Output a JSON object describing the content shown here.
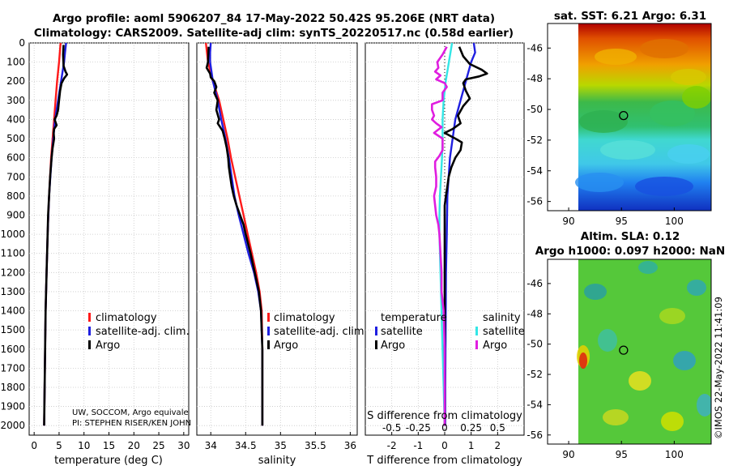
{
  "header": {
    "line1": "Argo profile: aoml 5906207_84 17-May-2022 50.42S 95.206E (NRT data)",
    "line2": "Climatology: CARS2009. Satellite-adj clim: synTS_20220517.nc (0.58d earlier)"
  },
  "colors": {
    "climatology": "#ff1a1a",
    "satellite_adj": "#1f1fe0",
    "argo": "#000000",
    "sal_satellite": "#33e6e6",
    "sal_argo": "#e01ee0"
  },
  "credits": {
    "line1": "UW, SOCCOM, Argo equivale",
    "line2": "PI: STEPHEN RISER/KEN JOHN",
    "stamp": "©IMOS 22-May-2022 11:41:09"
  },
  "chart_data": [
    {
      "type": "line",
      "name": "temperature",
      "xlabel": "temperature (deg C)",
      "ylabel": "",
      "xlim": [
        -1,
        31
      ],
      "ylim": [
        2050,
        0
      ],
      "xticks": [
        "0",
        "5",
        "10",
        "15",
        "20",
        "25",
        "30"
      ],
      "yticks": [
        "0",
        "100",
        "200",
        "300",
        "400",
        "500",
        "600",
        "700",
        "800",
        "900",
        "1000",
        "1100",
        "1200",
        "1300",
        "1400",
        "1500",
        "1600",
        "1700",
        "1800",
        "1900",
        "2000"
      ],
      "legend": [
        "climatology",
        "satellite-adj. clim.",
        "Argo"
      ],
      "series": [
        {
          "name": "climatology",
          "depth": [
            0,
            100,
            200,
            300,
            400,
            600,
            800,
            1000,
            1200,
            1400,
            1600,
            1800,
            2000
          ],
          "values": [
            5.3,
            5.0,
            4.6,
            4.3,
            4.0,
            3.4,
            3.0,
            2.7,
            2.5,
            2.3,
            2.2,
            2.1,
            2.0
          ]
        },
        {
          "name": "satellite-adj. clim.",
          "depth": [
            0,
            50,
            100,
            200,
            300,
            400,
            600,
            800,
            1000,
            1200,
            1400,
            1600,
            1800,
            2000
          ],
          "values": [
            6.4,
            6.2,
            6.0,
            5.4,
            4.8,
            4.2,
            3.5,
            3.0,
            2.7,
            2.5,
            2.3,
            2.2,
            2.1,
            2.0
          ]
        },
        {
          "name": "Argo",
          "depth": [
            10,
            60,
            120,
            150,
            165,
            185,
            210,
            250,
            300,
            350,
            380,
            400,
            430,
            450,
            470,
            500,
            550,
            600,
            700,
            800,
            900,
            1000,
            1200,
            1400,
            1600,
            1800,
            2000
          ],
          "values": [
            5.9,
            5.8,
            5.9,
            6.3,
            6.6,
            6.0,
            5.5,
            5.2,
            5.0,
            4.8,
            4.5,
            4.1,
            4.5,
            4.0,
            3.9,
            4.0,
            3.7,
            3.5,
            3.2,
            3.0,
            2.8,
            2.7,
            2.5,
            2.3,
            2.2,
            2.1,
            2.0
          ]
        }
      ]
    },
    {
      "type": "line",
      "name": "salinity",
      "xlabel": "salinity",
      "xlim": [
        33.8,
        36.1
      ],
      "ylim": [
        2050,
        0
      ],
      "xticks": [
        "34",
        "34.5",
        "35",
        "35.5",
        "36"
      ],
      "legend": [
        "climatology",
        "satellite-adj. clim.",
        "Argo"
      ],
      "series": [
        {
          "name": "climatology",
          "depth": [
            0,
            100,
            200,
            300,
            400,
            500,
            600,
            700,
            800,
            900,
            1000,
            1100,
            1200,
            1300,
            1400,
            1600,
            1800,
            2000
          ],
          "values": [
            33.93,
            33.96,
            34.03,
            34.12,
            34.18,
            34.24,
            34.29,
            34.35,
            34.41,
            34.47,
            34.53,
            34.59,
            34.65,
            34.7,
            34.73,
            34.74,
            34.74,
            34.74
          ]
        },
        {
          "name": "satellite-adj. clim.",
          "depth": [
            0,
            50,
            100,
            200,
            300,
            400,
            500,
            600,
            700,
            800,
            900,
            1000,
            1100,
            1200,
            1300,
            1400,
            1600,
            1800,
            2000
          ],
          "values": [
            34.0,
            33.99,
            33.99,
            34.03,
            34.1,
            34.15,
            34.21,
            34.26,
            34.3,
            34.34,
            34.4,
            34.47,
            34.54,
            34.62,
            34.68,
            34.72,
            34.74,
            34.74,
            34.74
          ]
        },
        {
          "name": "Argo",
          "depth": [
            20,
            100,
            130,
            160,
            180,
            200,
            230,
            260,
            300,
            350,
            400,
            420,
            460,
            500,
            550,
            600,
            650,
            700,
            750,
            800,
            850,
            900,
            950,
            1000,
            1100,
            1200,
            1300,
            1400,
            1600,
            1800,
            2000
          ],
          "values": [
            33.97,
            33.96,
            33.94,
            33.99,
            34.0,
            34.05,
            34.08,
            34.05,
            34.1,
            34.08,
            34.12,
            34.1,
            34.17,
            34.2,
            34.23,
            34.25,
            34.26,
            34.28,
            34.3,
            34.33,
            34.37,
            34.42,
            34.47,
            34.5,
            34.57,
            34.63,
            34.69,
            34.72,
            34.74,
            34.74,
            34.74
          ]
        }
      ]
    },
    {
      "type": "line",
      "name": "difference",
      "xlabel": "T difference from climatology",
      "xlabel_top": "S difference from climatology",
      "xlim": [
        -3,
        3
      ],
      "ylim": [
        2050,
        0
      ],
      "xticks": [
        "-2",
        "-1",
        "0",
        "1",
        "2"
      ],
      "xticks_top": [
        "-0.5",
        "-0.25",
        "0",
        "0.25",
        "0.5"
      ],
      "legend_titles": [
        "temperature",
        "salinity"
      ],
      "legend_left": [
        "satellite",
        "Argo"
      ],
      "legend_right": [
        "satellite",
        "Argo"
      ],
      "series": [
        {
          "name": "T satellite",
          "depth": [
            0,
            50,
            100,
            150,
            200,
            300,
            400,
            500,
            600,
            700,
            800,
            1000,
            1200,
            1400,
            1600,
            1800,
            2000
          ],
          "values": [
            1.1,
            1.15,
            1.0,
            0.9,
            0.8,
            0.6,
            0.4,
            0.3,
            0.2,
            0.15,
            0.1,
            0.08,
            0.05,
            0.04,
            0.03,
            0.02,
            0.02
          ]
        },
        {
          "name": "T Argo",
          "depth": [
            20,
            70,
            110,
            140,
            160,
            175,
            190,
            210,
            250,
            290,
            330,
            380,
            420,
            450,
            470,
            500,
            520,
            560,
            600,
            650,
            700,
            750,
            800,
            850,
            900,
            1000,
            1200,
            1400,
            1600,
            1800,
            2000
          ],
          "values": [
            0.55,
            0.7,
            0.95,
            1.4,
            1.6,
            1.3,
            0.8,
            0.7,
            0.8,
            0.95,
            0.7,
            0.5,
            0.6,
            0.3,
            0.0,
            0.4,
            0.65,
            0.6,
            0.4,
            0.25,
            0.15,
            0.1,
            0.05,
            0.0,
            0.0,
            0.0,
            0.0,
            0.0,
            0.0,
            0.0,
            0.0
          ]
        },
        {
          "name": "S satellite",
          "depth": [
            0,
            100,
            200,
            300,
            400,
            500,
            600,
            700,
            800,
            900,
            1000,
            1200,
            1400,
            1600,
            1800,
            2000
          ],
          "values": [
            0.07,
            0.04,
            0.01,
            -0.01,
            -0.02,
            -0.02,
            -0.025,
            -0.035,
            -0.045,
            -0.05,
            -0.05,
            -0.04,
            -0.03,
            -0.02,
            -0.01,
            0.0
          ]
        },
        {
          "name": "S Argo",
          "depth": [
            20,
            60,
            100,
            130,
            150,
            170,
            190,
            210,
            230,
            260,
            300,
            320,
            350,
            380,
            400,
            420,
            440,
            470,
            500,
            530,
            560,
            590,
            620,
            650,
            700,
            750,
            800,
            850,
            900,
            950,
            1000,
            1100,
            1200,
            1300,
            1400,
            1600,
            1800,
            2000
          ],
          "values": [
            0.02,
            -0.02,
            -0.07,
            -0.06,
            -0.09,
            -0.04,
            -0.08,
            0.0,
            0.02,
            -0.02,
            -0.02,
            -0.12,
            -0.12,
            -0.1,
            -0.12,
            -0.08,
            -0.03,
            -0.1,
            -0.02,
            -0.02,
            -0.02,
            -0.05,
            -0.09,
            -0.09,
            -0.08,
            -0.08,
            -0.1,
            -0.09,
            -0.08,
            -0.06,
            -0.05,
            -0.04,
            -0.03,
            -0.03,
            -0.01,
            0.0,
            0.0,
            0.0
          ]
        }
      ]
    },
    {
      "type": "heatmap",
      "name": "sst_map",
      "title": "sat. SST: 6.21 Argo: 6.31",
      "xlim": [
        88,
        103.5
      ],
      "ylim": [
        -56.6,
        -44.4
      ],
      "xticks": [
        "90",
        "95",
        "100"
      ],
      "yticks": [
        "-46",
        "-48",
        "-50",
        "-52",
        "-54",
        "-56"
      ],
      "marker": {
        "lon": 95.2,
        "lat": -50.4
      }
    },
    {
      "type": "heatmap",
      "name": "sla_map",
      "title": "Altim. SLA: 0.12",
      "subtitle": "Argo h1000: 0.097 h2000: NaN",
      "xlim": [
        88,
        103.5
      ],
      "ylim": [
        -56.6,
        -44.4
      ],
      "xticks": [
        "90",
        "95",
        "100"
      ],
      "yticks": [
        "-46",
        "-48",
        "-50",
        "-52",
        "-54",
        "-56"
      ],
      "marker": {
        "lon": 95.2,
        "lat": -50.4
      }
    }
  ]
}
